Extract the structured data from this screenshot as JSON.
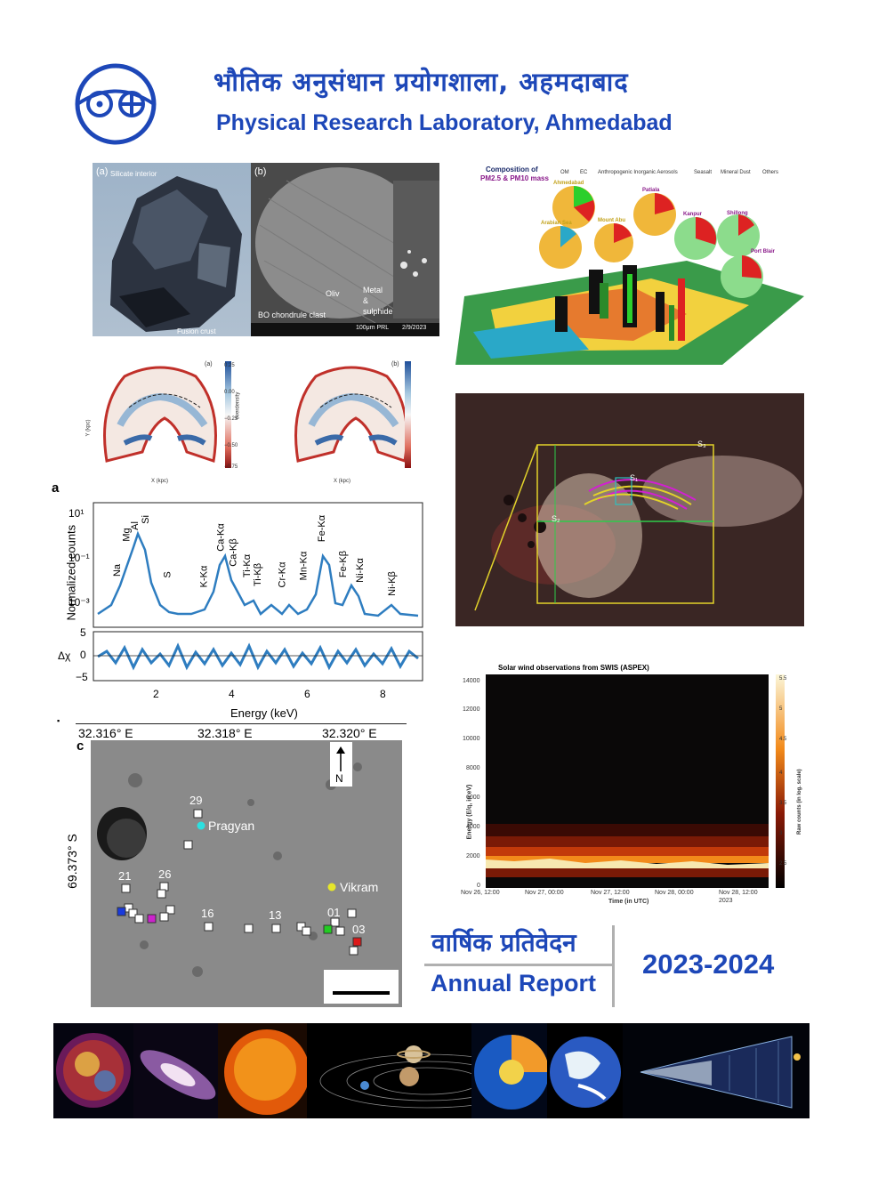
{
  "header": {
    "title_hindi": "भौतिक अनुसंधान प्रयोगशाला, अहमदाबाद",
    "title_english": "Physical Research Laboratory, Ahmedabad"
  },
  "meteorite": {
    "label_a": "(a)",
    "label_b": "(b)",
    "silicate": "Silicate interior",
    "fusion": "Fusion crust",
    "oliv": "Oliv",
    "chondrule": "BO chondrule clast",
    "metal": "Metal",
    "amp": "&",
    "sulphide": "sulphide",
    "scale": "100μm  PRL",
    "date": "2/9/2023"
  },
  "aerosol": {
    "title1": "Composition of",
    "title2": "PM2.5 & PM10 mass",
    "legend": [
      "OM",
      "EC",
      "Anthropogenic Inorganic Aerosols",
      "Seasalt",
      "Mineral Dust",
      "Others"
    ],
    "sites": [
      "Ahmedabad",
      "Mount Abu",
      "Patiala",
      "Kanpur",
      "Shillong",
      "Arabian Sea",
      "Port Blair"
    ]
  },
  "galaxy": {
    "panel_a": "(a)",
    "panel_b": "(b)",
    "xlabel": "X (kpc)",
    "ylabel": "Y (kpc)",
    "cbar_label": "overdensity",
    "cbar_ticks": [
      "0.25",
      "0.00",
      "−0.25",
      "−0.50",
      "−0.75"
    ]
  },
  "spectrum": {
    "panel": "a",
    "ylabel": "Normalized counts",
    "xlabel": "Energy (keV)",
    "resid_label": "Δχ",
    "yticks": [
      "10¹",
      "10⁻¹",
      "10⁻³"
    ],
    "resid_ticks": [
      "5",
      "0",
      "−5"
    ],
    "xticks": [
      "2",
      "4",
      "6",
      "8"
    ],
    "lines": [
      "Na",
      "Mg",
      "Al",
      "Si",
      "S",
      "K-Kα",
      "Ca-Kα",
      "Ca-Kβ",
      "Ti-Kα",
      "Ti-Kβ",
      "Cr-Kα",
      "Mn-Kα",
      "Fe-Kα",
      "Fe-Kβ",
      "Ni-Kα",
      "Ni-Kβ"
    ]
  },
  "solar": {
    "s1": "S₁",
    "s2": "S₂",
    "s3": "S₃"
  },
  "moon": {
    "panel": "c",
    "lon_ticks": [
      "32.316° E",
      "32.318° E",
      "32.320° E"
    ],
    "lat": "69.373° S",
    "north": "N",
    "pragyan": "Pragyan",
    "vikram": "Vikram",
    "numbers": [
      "29",
      "21",
      "26",
      "16",
      "13",
      "01",
      "03"
    ]
  },
  "swis": {
    "title": "Solar wind observations from SWIS (ASPEX)",
    "ylabel": "Energy (E/q, in eV)",
    "xlabel": "Time (in UTC)",
    "cbar_label": "Raw counts (in log. scale)",
    "yticks": [
      "14000",
      "12000",
      "10000",
      "8000",
      "6000",
      "4000",
      "2000",
      "0"
    ],
    "xticks": [
      "Nov 26, 12:00",
      "Nov 27, 00:00",
      "Nov 27, 12:00",
      "Nov 28, 00:00",
      "Nov 28, 12:00"
    ],
    "year": "2023",
    "cbar_ticks": [
      "5.5",
      "5",
      "4.5",
      "4",
      "3.5",
      "3",
      "2.5"
    ]
  },
  "report": {
    "hindi": "वार्षिक प्रतिवेदन",
    "english": "Annual Report",
    "year": "2023-2024"
  },
  "colors": {
    "brand_blue": "#1d47b8"
  }
}
